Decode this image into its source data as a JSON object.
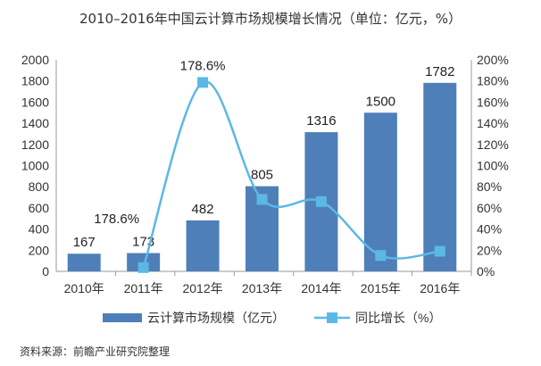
{
  "chart_data": {
    "type": "bar+line",
    "title": "2010–2016年中国云计算市场规模增长情况（单位：亿元，%）",
    "categories": [
      "2010年",
      "2011年",
      "2012年",
      "2013年",
      "2014年",
      "2015年",
      "2016年"
    ],
    "series": [
      {
        "name": "云计算市场规模（亿元）",
        "type": "bar",
        "axis": "left",
        "values": [
          167,
          173,
          482,
          805,
          1316,
          1500,
          1782
        ],
        "labels": [
          "167",
          "173",
          "482",
          "805",
          "1316",
          "1500",
          "1782"
        ],
        "color": "#4f7fb8"
      },
      {
        "name": "同比增长（%）",
        "type": "line",
        "axis": "right",
        "values": [
          null,
          3.6,
          178.6,
          68,
          66,
          15,
          19
        ],
        "color": "#5bb8e6"
      }
    ],
    "annotations": [
      "178.6%",
      "178.6%"
    ],
    "left_axis": {
      "range": [
        0,
        2000
      ],
      "ticks": [
        "0",
        "200",
        "400",
        "600",
        "800",
        "1000",
        "1200",
        "1400",
        "1600",
        "1800",
        "2000"
      ]
    },
    "right_axis": {
      "range": [
        0,
        200
      ],
      "ticks": [
        "0%",
        "20%",
        "40%",
        "60%",
        "80%",
        "100%",
        "120%",
        "140%",
        "160%",
        "180%",
        "200%"
      ]
    },
    "grid": false,
    "legend_position": "bottom"
  },
  "source": "资料来源：前瞻产业研究院整理"
}
